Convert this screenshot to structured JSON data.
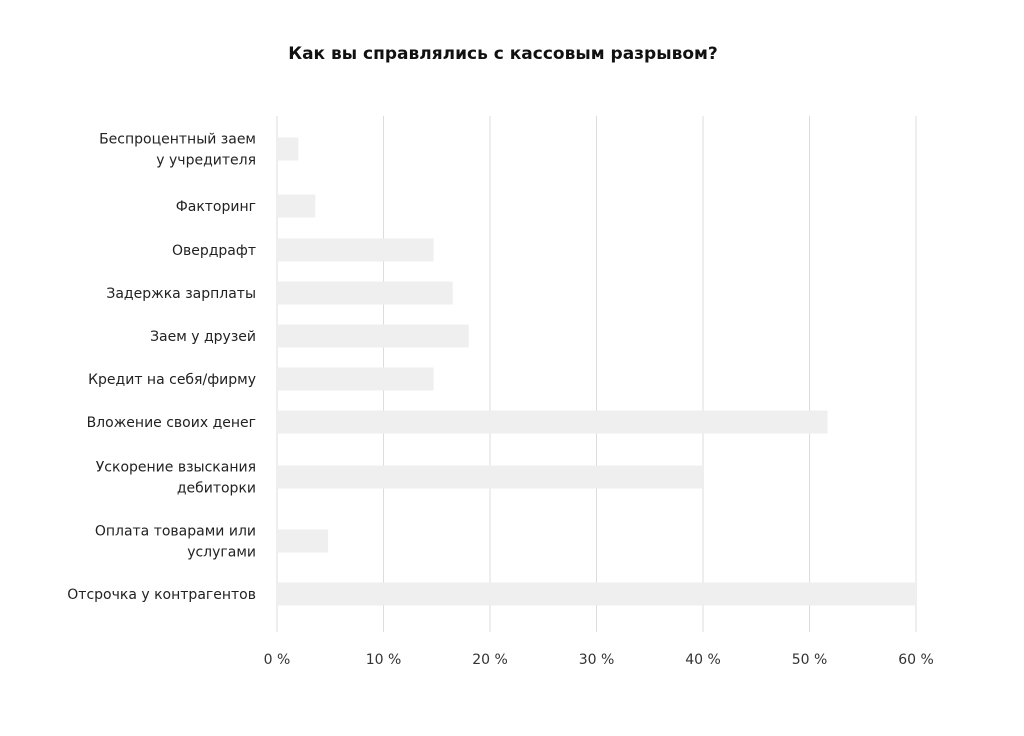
{
  "chart_data": {
    "type": "bar",
    "orientation": "horizontal",
    "title": "Как вы справлялись с кассовым разрывом?",
    "xlabel": "",
    "ylabel": "",
    "xlim": [
      0,
      60
    ],
    "x_ticks": [
      "0 %",
      "10 %",
      "20 %",
      "30 %",
      "40 %",
      "50 %",
      "60 %"
    ],
    "x_tick_values": [
      0,
      10,
      20,
      30,
      40,
      50,
      60
    ],
    "grid": "vertical",
    "legend": "none",
    "bar_color": "#efefef",
    "grid_color": "#dcdcdc",
    "categories": [
      [
        "Беспроцентный заем",
        "у учредителя"
      ],
      [
        "Факторинг"
      ],
      [
        "Овердрафт"
      ],
      [
        "Задержка зарплаты"
      ],
      [
        "Заем у друзей"
      ],
      [
        "Кредит на себя/фирму"
      ],
      [
        "Вложение своих денег"
      ],
      [
        "Ускорение взыскания",
        "дебиторки"
      ],
      [
        "Оплата товарами или",
        "услугами"
      ],
      [
        "Отсрочка у контрагентов"
      ]
    ],
    "values": [
      2,
      3.6,
      14.7,
      16.5,
      18,
      14.7,
      51.7,
      40,
      4.8,
      60
    ]
  }
}
